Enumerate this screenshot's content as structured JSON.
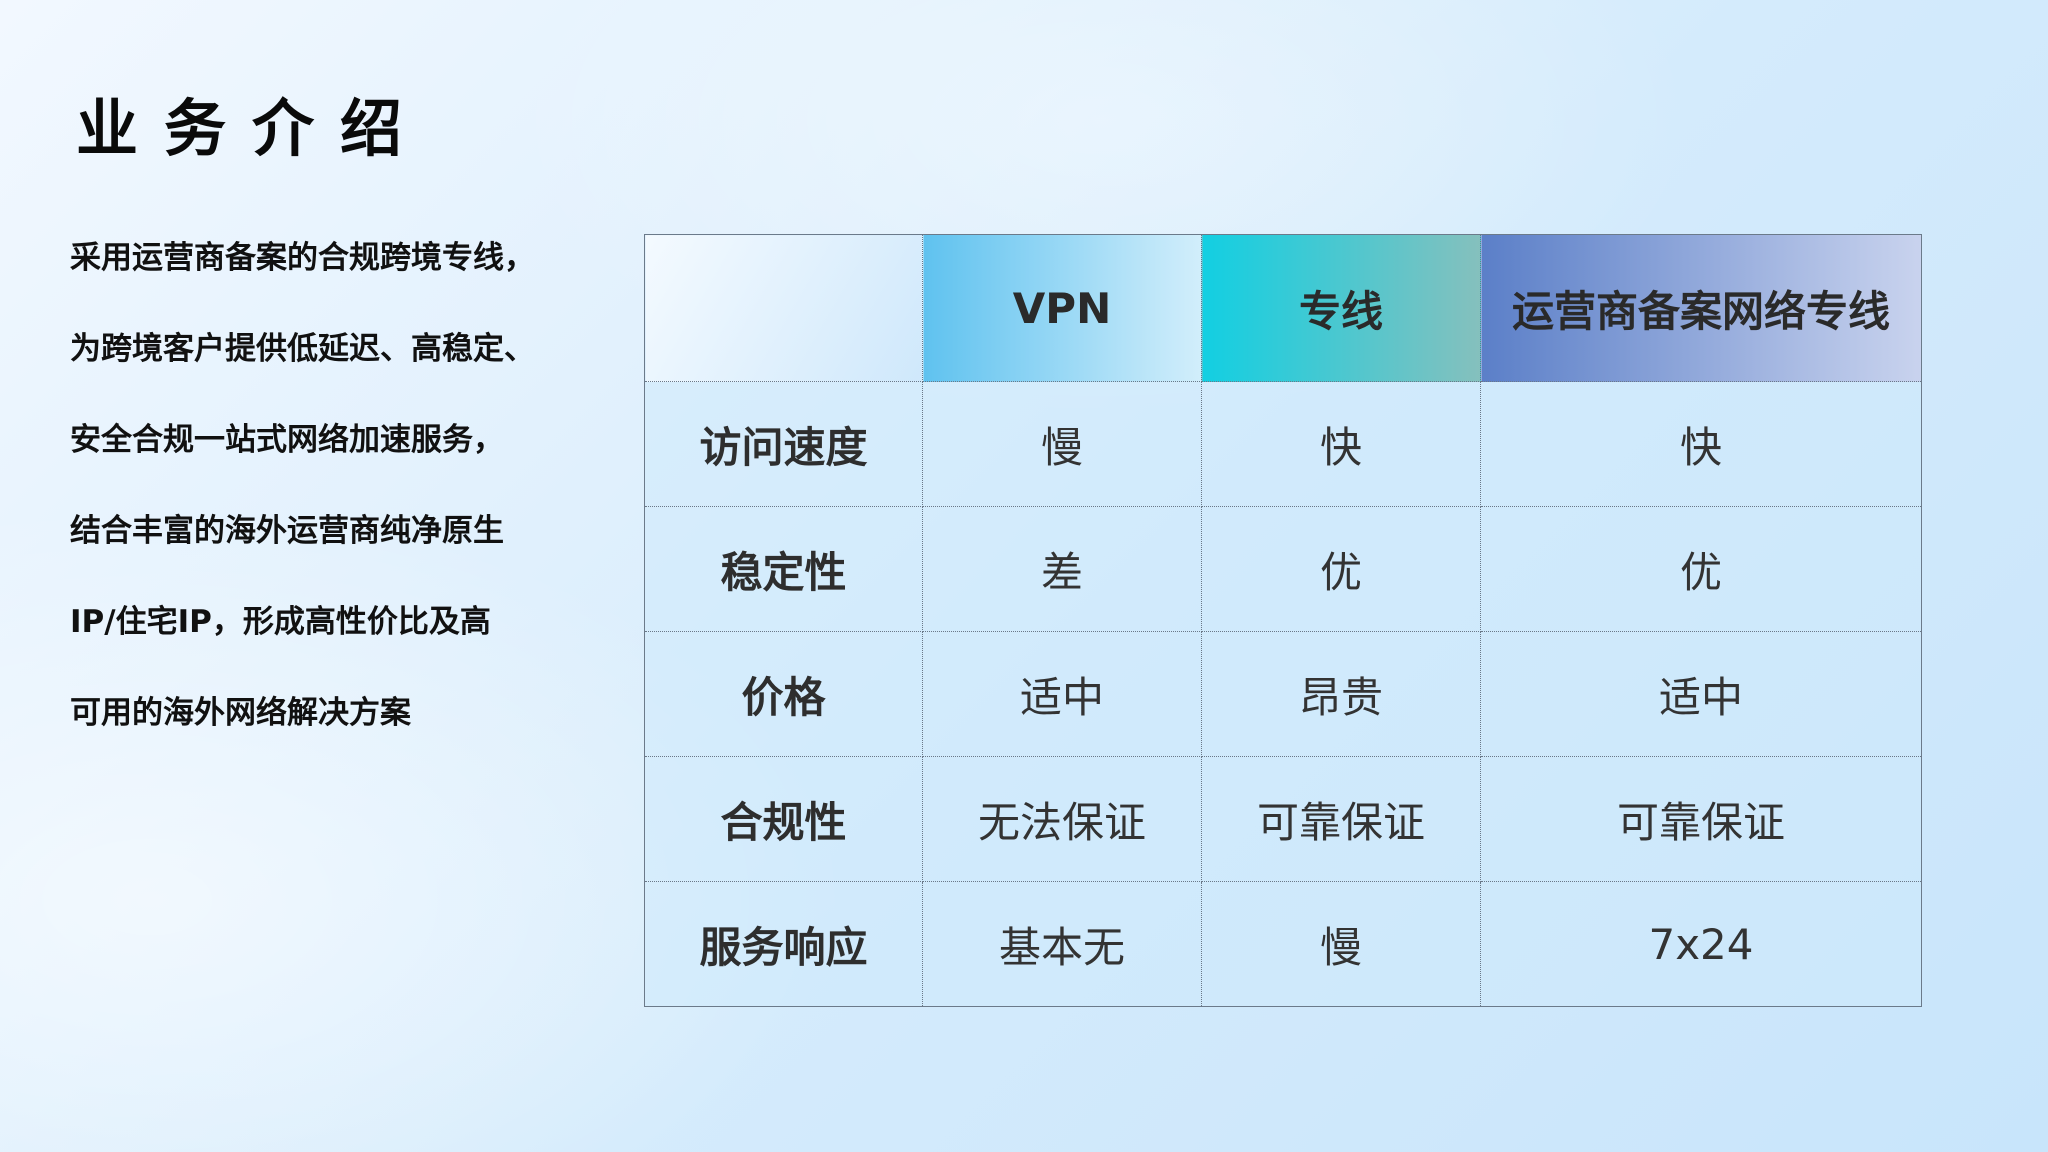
{
  "title": "业务介绍",
  "intro_lines": [
    "采用运营商备案的合规跨境专线，",
    "为跨境客户提供低延迟、高稳定、",
    "安全合规一站式网络加速服务，",
    "结合丰富的海外运营商纯净原生",
    "IP/住宅IP，形成高性价比及高",
    "可用的海外网络解决方案"
  ],
  "table": {
    "headers": [
      "",
      "VPN",
      "专线",
      "运营商备案网络专线"
    ],
    "header_colors": [
      "#e6f3fd",
      "#5fc2ef",
      "#12cfe2",
      "#5b7fc8"
    ],
    "rows": [
      {
        "label": "访问速度",
        "values": [
          "慢",
          "快",
          "快"
        ]
      },
      {
        "label": "稳定性",
        "values": [
          "差",
          "优",
          "优"
        ]
      },
      {
        "label": "价格",
        "values": [
          "适中",
          "昂贵",
          "适中"
        ]
      },
      {
        "label": "合规性",
        "values": [
          "无法保证",
          "可靠保证",
          "可靠保证"
        ]
      },
      {
        "label": "服务响应",
        "values": [
          "基本无",
          "慢",
          "7x24"
        ]
      }
    ]
  }
}
